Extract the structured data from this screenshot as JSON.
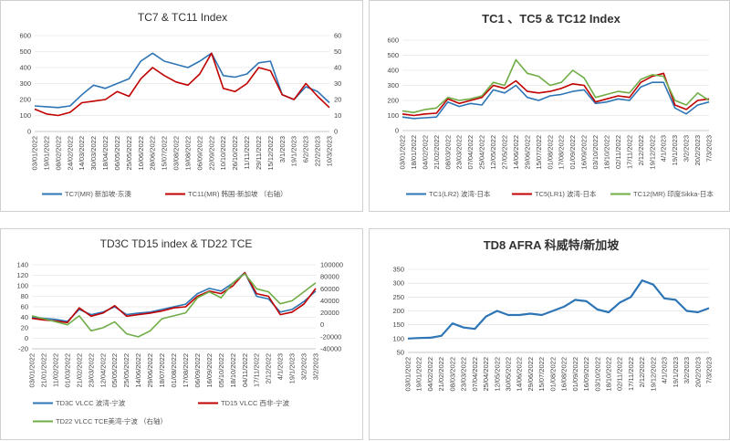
{
  "chart_data": [
    {
      "type": "line",
      "title": "TC7 & TC11 Index",
      "x": [
        "03/01/2022",
        "19/01/2022",
        "08/02/2022",
        "24/02/2022",
        "14/03/2022",
        "30/03/2022",
        "18/04/2022",
        "06/05/2022",
        "25/05/2022",
        "10/06/2022",
        "28/06/2022",
        "15/07/2022",
        "03/08/2022",
        "19/08/2022",
        "06/09/2022",
        "22/09/2022",
        "10/10/2022",
        "26/10/2022",
        "11/11/2022",
        "29/11/2022",
        "15/12/2022",
        "3/1/2023",
        "19/1/2023",
        "6/2/2023",
        "22/2/2023",
        "10/3/2023"
      ],
      "ylim": [
        0,
        600
      ],
      "y2lim": [
        0,
        60
      ],
      "yticks": [
        0,
        100,
        200,
        300,
        400,
        500,
        600
      ],
      "y2ticks": [
        0,
        10,
        20,
        30,
        40,
        50,
        60
      ],
      "series": [
        {
          "name": "TC7(MR) 新加坡-东澳",
          "color": "#2e75b6",
          "axis": "left",
          "values": [
            160,
            155,
            150,
            160,
            230,
            290,
            270,
            300,
            330,
            440,
            490,
            440,
            420,
            400,
            440,
            490,
            350,
            340,
            360,
            430,
            440,
            230,
            200,
            280,
            250,
            180
          ]
        },
        {
          "name": "TC11(MR) 韩国-新加坡 （右轴）",
          "color": "#c00000",
          "axis": "right",
          "values": [
            14,
            11,
            10,
            12,
            18,
            19,
            20,
            25,
            22,
            33,
            40,
            35,
            31,
            29,
            36,
            49,
            27,
            25,
            30,
            40,
            38,
            23,
            20,
            30,
            22,
            15
          ]
        }
      ]
    },
    {
      "type": "line",
      "title": "TC1 、TC5 & TC12 Index",
      "x": [
        "03/01/2022",
        "18/01/2022",
        "04/02/2022",
        "21/02/2022",
        "08/03/2022",
        "23/03/2022",
        "07/04/2022",
        "25/04/2022",
        "12/05/2022",
        "27/05/2022",
        "14/06/2022",
        "29/06/2022",
        "15/07/2022",
        "01/08/2022",
        "17/08/2022",
        "01/09/2022",
        "16/09/2022",
        "03/10/2022",
        "18/10/2022",
        "02/11/2022",
        "17/11/2022",
        "2/12/2022",
        "19/12/2022",
        "4/1/2023",
        "19/1/2023",
        "3/2/2023",
        "20/2/2023",
        "7/3/2023"
      ],
      "ylim": [
        0,
        600
      ],
      "yticks": [
        0,
        100,
        200,
        300,
        400,
        500,
        600
      ],
      "series": [
        {
          "name": "TC1(LR2) 波湾-日本",
          "color": "#2e75b6",
          "values": [
            90,
            80,
            85,
            90,
            190,
            160,
            180,
            170,
            270,
            250,
            300,
            220,
            200,
            230,
            240,
            260,
            270,
            180,
            190,
            210,
            200,
            290,
            320,
            320,
            150,
            110,
            170,
            190
          ]
        },
        {
          "name": "TC5(LR1) 波湾-日本",
          "color": "#c00000",
          "values": [
            110,
            100,
            110,
            115,
            210,
            180,
            200,
            220,
            300,
            280,
            330,
            260,
            250,
            260,
            280,
            310,
            300,
            190,
            210,
            230,
            220,
            320,
            360,
            380,
            170,
            140,
            200,
            210
          ]
        },
        {
          "name": "TC12(MR) 印度Sikka-日本",
          "color": "#70ad47",
          "values": [
            130,
            120,
            140,
            150,
            220,
            200,
            210,
            230,
            320,
            300,
            470,
            380,
            360,
            300,
            320,
            400,
            350,
            220,
            240,
            260,
            250,
            340,
            370,
            360,
            200,
            170,
            250,
            200
          ]
        }
      ]
    },
    {
      "type": "line",
      "title": "TD3C TD15 index & TD22 TCE",
      "x": [
        "03/01/2022",
        "21/01/2022",
        "11/02/2022",
        "01/03/2022",
        "21/02/2022",
        "23/03/2022",
        "12/04/2022",
        "05/05/2022",
        "25/05/2022",
        "14/06/2022",
        "29/06/2022",
        "18/07/2022",
        "01/08/2022",
        "17/08/2022",
        "06/09/2022",
        "16/09/2022",
        "05/10/2022",
        "18/10/2022",
        "04/11/2022",
        "17/11/2022",
        "2/12/2022",
        "4/1/2023",
        "19/1/2023",
        "3/2/2023",
        "3/2/2023"
      ],
      "ylim": [
        -20,
        140
      ],
      "y2lim": [
        -40000,
        100000
      ],
      "yticks": [
        -20,
        0,
        20,
        40,
        60,
        80,
        100,
        120,
        140
      ],
      "y2ticks": [
        -40000,
        -20000,
        0,
        20000,
        40000,
        60000,
        80000,
        100000
      ],
      "series": [
        {
          "name": "TD3C VLCC 波湾-宁波",
          "color": "#2e75b6",
          "axis": "left",
          "values": [
            40,
            38,
            36,
            32,
            55,
            45,
            50,
            60,
            45,
            48,
            50,
            55,
            60,
            65,
            85,
            95,
            90,
            105,
            125,
            80,
            75,
            50,
            55,
            70,
            90
          ]
        },
        {
          "name": "TD15 VLCC 西非-宁波",
          "color": "#c00000",
          "axis": "left",
          "values": [
            38,
            35,
            33,
            30,
            58,
            42,
            48,
            62,
            42,
            45,
            48,
            52,
            58,
            60,
            80,
            90,
            85,
            100,
            125,
            85,
            80,
            45,
            50,
            65,
            95
          ]
        },
        {
          "name": "TD22 VLCC TCE美湾-宁波 （右轴）",
          "color": "#70ad47",
          "axis": "right",
          "values": [
            15000,
            10000,
            5000,
            0,
            15000,
            -10000,
            -5000,
            5000,
            -15000,
            -20000,
            -10000,
            10000,
            15000,
            20000,
            45000,
            55000,
            45000,
            70000,
            85000,
            60000,
            55000,
            35000,
            40000,
            55000,
            70000
          ]
        }
      ]
    },
    {
      "type": "line",
      "title": "TD8 AFRA 科威特/新加坡",
      "x": [
        "03/01/2022",
        "19/01/2022",
        "04/02/2022",
        "21/02/2022",
        "08/03/2022",
        "23/03/2022",
        "07/04/2022",
        "25/04/2022",
        "12/05/2022",
        "30/05/2022",
        "14/06/2022",
        "29/06/2022",
        "15/07/2022",
        "01/08/2022",
        "16/08/2022",
        "01/09/2022",
        "16/09/2022",
        "03/10/2022",
        "18/10/2022",
        "02/11/2022",
        "17/11/2022",
        "2/12/2022",
        "19/12/2022",
        "4/1/2023",
        "19/1/2023",
        "3/2/2023",
        "20/2/2023",
        "7/3/2023"
      ],
      "ylim": [
        50,
        350
      ],
      "yticks": [
        50,
        100,
        150,
        200,
        250,
        300,
        350
      ],
      "series": [
        {
          "name": "TD8",
          "color": "#2e75b6",
          "values": [
            100,
            102,
            103,
            110,
            155,
            140,
            135,
            180,
            200,
            185,
            185,
            190,
            185,
            200,
            215,
            240,
            235,
            205,
            195,
            230,
            250,
            310,
            295,
            245,
            240,
            200,
            195,
            210
          ]
        }
      ]
    }
  ]
}
